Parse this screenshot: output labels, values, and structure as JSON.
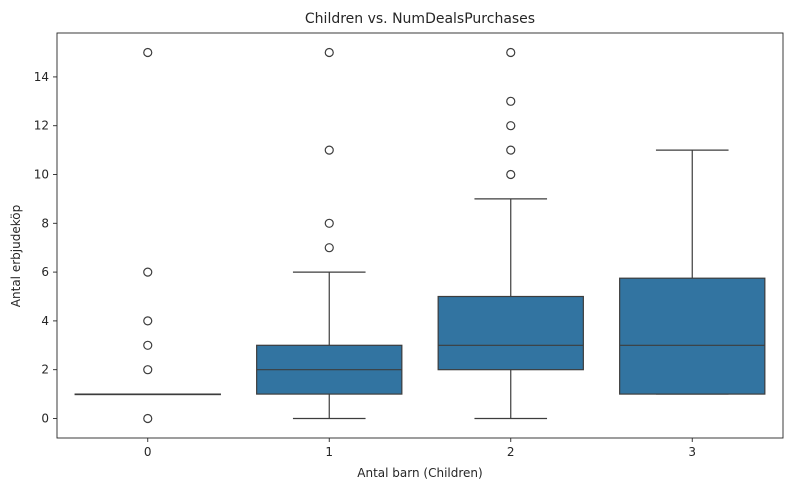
{
  "chart_data": {
    "type": "box",
    "title": "Children vs. NumDealsPurchases",
    "xlabel": "Antal barn (Children)",
    "ylabel": "Antal erbjudeköp",
    "categories": [
      "0",
      "1",
      "2",
      "3"
    ],
    "yticks": [
      0,
      2,
      4,
      6,
      8,
      10,
      12,
      14
    ],
    "ylim": [
      -0.8,
      15.8
    ],
    "grid": false,
    "legend": "none",
    "box_color": "#3274a1",
    "line_color": "#3d3d3d",
    "boxes": [
      {
        "category": "0",
        "whisker_low": 1,
        "q1": 1,
        "median": 1,
        "q3": 1,
        "whisker_high": 1,
        "outliers": [
          0,
          2,
          3,
          4,
          6,
          15
        ]
      },
      {
        "category": "1",
        "whisker_low": 0,
        "q1": 1,
        "median": 2,
        "q3": 3,
        "whisker_high": 6,
        "outliers": [
          7,
          8,
          11,
          15
        ]
      },
      {
        "category": "2",
        "whisker_low": 0,
        "q1": 2,
        "median": 3,
        "q3": 5,
        "whisker_high": 9,
        "outliers": [
          10,
          11,
          12,
          13,
          15
        ]
      },
      {
        "category": "3",
        "whisker_low": 1,
        "q1": 1,
        "median": 3,
        "q3": 5.75,
        "whisker_high": 11,
        "outliers": []
      }
    ]
  }
}
